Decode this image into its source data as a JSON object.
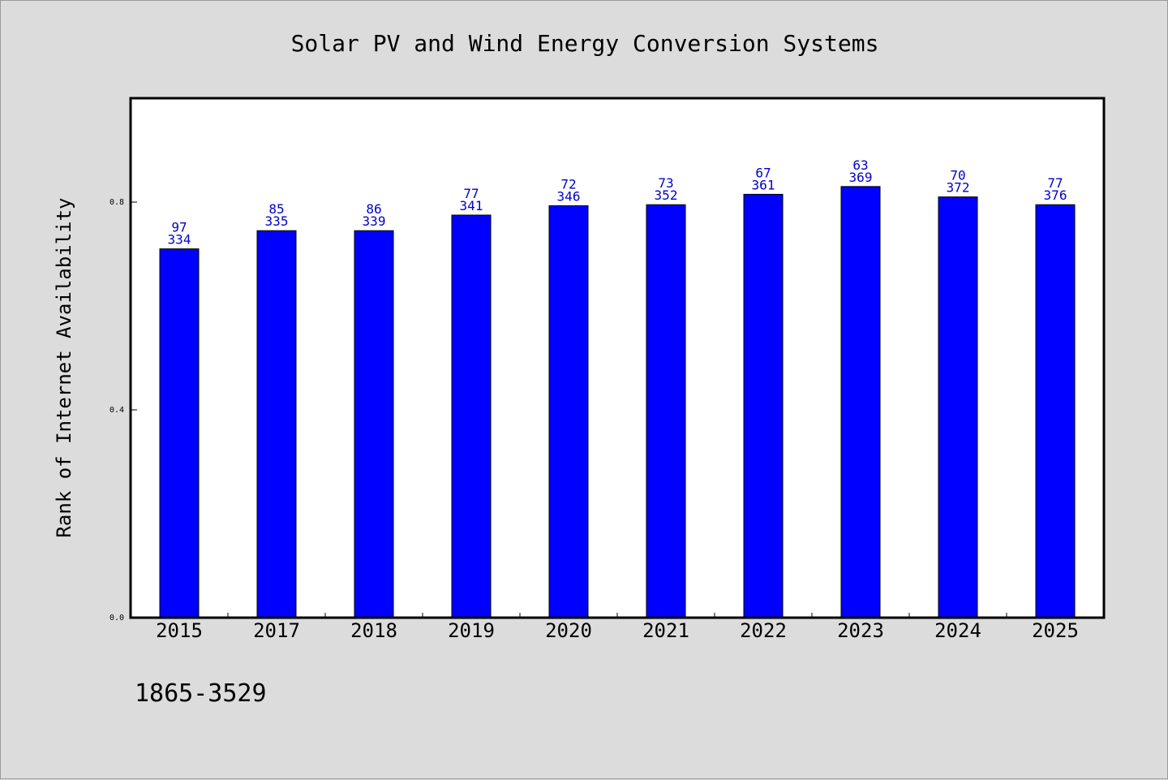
{
  "chart_data": {
    "type": "bar",
    "title": "Solar PV and Wind Energy Conversion Systems",
    "xlabel": "",
    "ylabel": "Rank of Internet Availability",
    "categories": [
      "2015",
      "2017",
      "2018",
      "2019",
      "2020",
      "2021",
      "2022",
      "2023",
      "2024",
      "2025"
    ],
    "values": [
      0.71,
      0.745,
      0.745,
      0.775,
      0.793,
      0.795,
      0.815,
      0.83,
      0.81,
      0.795
    ],
    "top_labels": [
      "97",
      "85",
      "86",
      "77",
      "72",
      "73",
      "67",
      "63",
      "70",
      "77"
    ],
    "bottom_labels": [
      "334",
      "335",
      "339",
      "341",
      "346",
      "352",
      "361",
      "369",
      "372",
      "376"
    ],
    "yticks": [
      {
        "value": 0.0,
        "label": "0.0"
      },
      {
        "value": 0.4,
        "label": "0.4"
      },
      {
        "value": 0.8,
        "label": "0.8"
      }
    ],
    "ylim": [
      0,
      1.0
    ],
    "grid": false,
    "bar_color": "#0000ff",
    "label_color": "#0000cc",
    "background": "#dcdcdc",
    "plot_background": "#ffffff"
  },
  "footnote": "1865-3529"
}
